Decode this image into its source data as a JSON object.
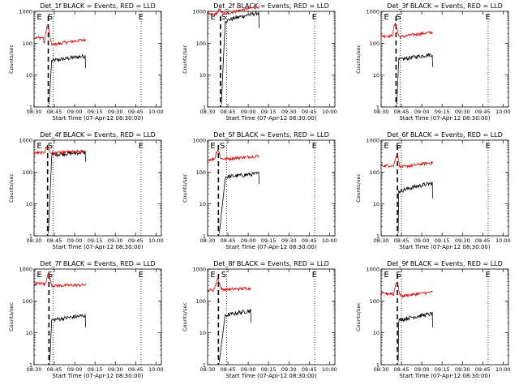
{
  "figure": {
    "panels": [
      {
        "title": "Det_1f BLACK = Events, RED = LLD"
      },
      {
        "title": "Det_2f BLACK = Events, RED = LLD"
      },
      {
        "title": "Det_3f BLACK = Events, RED = LLD"
      },
      {
        "title": "Det_4f BLACK = Events, RED = LLD"
      },
      {
        "title": "Det_5f BLACK = Events, RED = LLD"
      },
      {
        "title": "Det_6f BLACK = Events, RED = LLD"
      },
      {
        "title": "Det_7f BLACK = Events, RED = LLD"
      },
      {
        "title": "Det_8f BLACK = Events, RED = LLD"
      },
      {
        "title": "Det_9f BLACK = Events, RED = LLD"
      }
    ],
    "xlabel": "Start Time (07-Apr-12 08:30:00)",
    "ylabel": "Counts/sec",
    "x_ticks": [
      "08:30",
      "08:45",
      "09:00",
      "09:15",
      "09:30",
      "09:45",
      "10:00"
    ],
    "y_ticks": [
      "1",
      "10",
      "100",
      "1000"
    ],
    "markers": {
      "E": "E",
      "S": "S"
    },
    "colors": {
      "events": "#000000",
      "lld": "#dd0000",
      "axes": "#000000"
    }
  },
  "chart_data": [
    {
      "type": "line",
      "title": "Det_1f BLACK = Events, RED = LLD",
      "xlabel": "Start Time (07-Apr-12 08:30:00)",
      "ylabel": "Counts/sec",
      "x_unit": "minutes after 08:30",
      "xlim": [
        0,
        94
      ],
      "ylim": [
        1,
        1000
      ],
      "y_scale": "log",
      "dashed_vertical_x": 10.5,
      "dotted_vertical_x": [
        14,
        79
      ],
      "marker_labels": [
        {
          "text": "E",
          "x": 2
        },
        {
          "text": "S",
          "x": 10
        },
        {
          "text": "E",
          "x": 77
        }
      ],
      "series": [
        {
          "color": "black",
          "start": 13,
          "end": 38,
          "level": 28,
          "end_level": 40,
          "peak": 0,
          "pre": 0
        },
        {
          "color": "red",
          "start": 0,
          "end": 38,
          "level": 90,
          "end_level": 130,
          "peak": 350,
          "pre": 150
        }
      ]
    },
    {
      "type": "line",
      "title": "Det_2f BLACK = Events, RED = LLD",
      "xlabel": "Start Time (07-Apr-12 08:30:00)",
      "ylabel": "Counts/sec",
      "x_unit": "minutes after 08:30",
      "xlim": [
        0,
        94
      ],
      "ylim": [
        1,
        1000
      ],
      "y_scale": "log",
      "dashed_vertical_x": 9.5,
      "dotted_vertical_x": [
        14,
        79
      ],
      "marker_labels": [
        {
          "text": "E",
          "x": 2
        },
        {
          "text": "S",
          "x": 10
        },
        {
          "text": "E",
          "x": 77
        }
      ],
      "series": [
        {
          "color": "black",
          "start": 13,
          "end": 38,
          "level": 500,
          "end_level": 900,
          "peak": 0,
          "pre": 0
        },
        {
          "color": "red",
          "start": 0,
          "end": 38,
          "level": 850,
          "end_level": 1400,
          "peak": 1100,
          "pre": 800
        }
      ]
    },
    {
      "type": "line",
      "title": "Det_3f BLACK = Events, RED = LLD",
      "xlabel": "Start Time (07-Apr-12 08:30:00)",
      "ylabel": "Counts/sec",
      "x_unit": "minutes after 08:30",
      "xlim": [
        0,
        94
      ],
      "ylim": [
        1,
        1000
      ],
      "y_scale": "log",
      "dashed_vertical_x": 11,
      "dotted_vertical_x": [
        14,
        79
      ],
      "marker_labels": [
        {
          "text": "E",
          "x": 2
        },
        {
          "text": "S",
          "x": 11
        },
        {
          "text": "E",
          "x": 77
        }
      ],
      "series": [
        {
          "color": "black",
          "start": 13,
          "end": 38,
          "level": 30,
          "end_level": 45,
          "peak": 0,
          "pre": 0
        },
        {
          "color": "red",
          "start": 0,
          "end": 38,
          "level": 160,
          "end_level": 220,
          "peak": 400,
          "pre": 170
        }
      ]
    },
    {
      "type": "line",
      "title": "Det_4f BLACK = Events, RED = LLD",
      "xlabel": "Start Time (07-Apr-12 08:30:00)",
      "ylabel": "Counts/sec",
      "x_unit": "minutes after 08:30",
      "xlim": [
        0,
        94
      ],
      "ylim": [
        1,
        1000
      ],
      "y_scale": "log",
      "dashed_vertical_x": 10,
      "dotted_vertical_x": [
        14,
        79
      ],
      "marker_labels": [
        {
          "text": "E",
          "x": 2
        },
        {
          "text": "S",
          "x": 10
        },
        {
          "text": "E",
          "x": 77
        }
      ],
      "series": [
        {
          "color": "black",
          "start": 13,
          "end": 38,
          "level": 350,
          "end_level": 420,
          "peak": 0,
          "pre": 0
        },
        {
          "color": "red",
          "start": 0,
          "end": 38,
          "level": 400,
          "end_level": 450,
          "peak": 600,
          "pre": 400
        }
      ]
    },
    {
      "type": "line",
      "title": "Det_5f BLACK = Events, RED = LLD",
      "xlabel": "Start Time (07-Apr-12 08:30:00)",
      "ylabel": "Counts/sec",
      "x_unit": "minutes after 08:30",
      "xlim": [
        0,
        94
      ],
      "ylim": [
        1,
        1000
      ],
      "y_scale": "log",
      "dashed_vertical_x": 8,
      "dotted_vertical_x": [
        14,
        79
      ],
      "marker_labels": [
        {
          "text": "E",
          "x": 2
        },
        {
          "text": "S",
          "x": 9
        },
        {
          "text": "E",
          "x": 77
        }
      ],
      "series": [
        {
          "color": "black",
          "start": 13,
          "end": 38,
          "level": 70,
          "end_level": 90,
          "peak": 0,
          "pre": 0
        },
        {
          "color": "red",
          "start": 0,
          "end": 38,
          "level": 260,
          "end_level": 320,
          "peak": 500,
          "pre": 250
        }
      ]
    },
    {
      "type": "line",
      "title": "Det_6f BLACK = Events, RED = LLD",
      "xlabel": "Start Time (07-Apr-12 08:30:00)",
      "ylabel": "Counts/sec",
      "x_unit": "minutes after 08:30",
      "xlim": [
        0,
        94
      ],
      "ylim": [
        1,
        1000
      ],
      "y_scale": "log",
      "dashed_vertical_x": 12,
      "dotted_vertical_x": [
        15,
        79
      ],
      "marker_labels": [
        {
          "text": "E",
          "x": 2
        },
        {
          "text": "S",
          "x": 11
        },
        {
          "text": "E",
          "x": 77
        }
      ],
      "series": [
        {
          "color": "black",
          "start": 13,
          "end": 38,
          "level": 25,
          "end_level": 45,
          "peak": 0,
          "pre": 0
        },
        {
          "color": "red",
          "start": 0,
          "end": 38,
          "level": 140,
          "end_level": 200,
          "peak": 350,
          "pre": 160
        }
      ]
    },
    {
      "type": "line",
      "title": "Det_7f BLACK = Events, RED = LLD",
      "xlabel": "Start Time (07-Apr-12 08:30:00)",
      "ylabel": "Counts/sec",
      "x_unit": "minutes after 08:30",
      "xlim": [
        0,
        94
      ],
      "ylim": [
        1,
        1000
      ],
      "y_scale": "log",
      "dashed_vertical_x": 11,
      "dotted_vertical_x": [
        14,
        79
      ],
      "marker_labels": [
        {
          "text": "E",
          "x": 2
        },
        {
          "text": "S",
          "x": 10
        },
        {
          "text": "E",
          "x": 77
        }
      ],
      "series": [
        {
          "color": "black",
          "start": 13,
          "end": 38,
          "level": 25,
          "end_level": 35,
          "peak": 0,
          "pre": 0
        },
        {
          "color": "red",
          "start": 0,
          "end": 38,
          "level": 300,
          "end_level": 320,
          "peak": 700,
          "pre": 350
        }
      ]
    },
    {
      "type": "line",
      "title": "Det_8f BLACK = Events, RED = LLD",
      "xlabel": "Start Time (07-Apr-12 08:30:00)",
      "ylabel": "Counts/sec",
      "x_unit": "minutes after 08:30",
      "xlim": [
        0,
        94
      ],
      "ylim": [
        1,
        1000
      ],
      "y_scale": "log",
      "dashed_vertical_x": 8,
      "dotted_vertical_x": [
        14,
        79
      ],
      "marker_labels": [
        {
          "text": "E",
          "x": 2
        },
        {
          "text": "S",
          "x": 10
        },
        {
          "text": "E",
          "x": 77
        }
      ],
      "series": [
        {
          "color": "black",
          "start": 13,
          "end": 32,
          "level": 35,
          "end_level": 50,
          "peak": 0,
          "pre": 0
        },
        {
          "color": "red",
          "start": 0,
          "end": 32,
          "level": 230,
          "end_level": 250,
          "peak": 500,
          "pre": 220
        }
      ]
    },
    {
      "type": "line",
      "title": "Det_9f BLACK = Events, RED = LLD",
      "xlabel": "Start Time (07-Apr-12 08:30:00)",
      "ylabel": "Counts/sec",
      "x_unit": "minutes after 08:30",
      "xlim": [
        0,
        94
      ],
      "ylim": [
        1,
        1000
      ],
      "y_scale": "log",
      "dashed_vertical_x": 12,
      "dotted_vertical_x": [
        15,
        79
      ],
      "marker_labels": [
        {
          "text": "E",
          "x": 2
        },
        {
          "text": "S",
          "x": 11
        },
        {
          "text": "E",
          "x": 77
        }
      ],
      "series": [
        {
          "color": "black",
          "start": 13,
          "end": 38,
          "level": 25,
          "end_level": 40,
          "peak": 0,
          "pre": 0
        },
        {
          "color": "red",
          "start": 0,
          "end": 38,
          "level": 140,
          "end_level": 190,
          "peak": 400,
          "pre": 170
        }
      ]
    }
  ]
}
